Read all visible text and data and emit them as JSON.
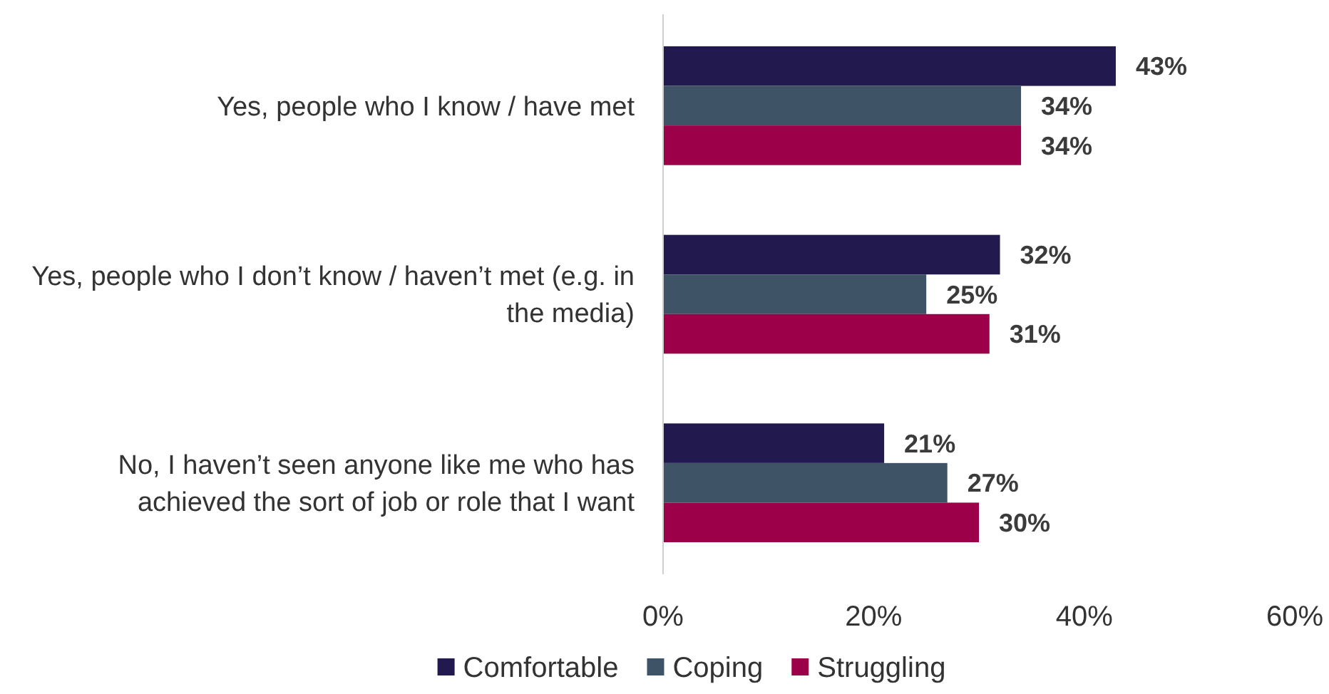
{
  "chart_data": {
    "type": "bar",
    "orientation": "horizontal",
    "categories": [
      "Yes, people who I know / have met",
      "Yes, people who I don’t know / haven’t met (e.g. in the media)",
      "No, I haven’t seen anyone like me who has achieved the sort of job or role that I want"
    ],
    "series": [
      {
        "name": "Comfortable",
        "color": "#221a4f",
        "values": [
          43,
          32,
          21
        ],
        "value_labels": [
          "43%",
          "32%",
          "21%"
        ]
      },
      {
        "name": "Coping",
        "color": "#3e5366",
        "values": [
          34,
          25,
          27
        ],
        "value_labels": [
          "34%",
          "25%",
          "27%"
        ]
      },
      {
        "name": "Struggling",
        "color": "#9b0048",
        "values": [
          34,
          31,
          30
        ],
        "value_labels": [
          "34%",
          "31%",
          "30%"
        ]
      }
    ],
    "xlim": [
      0,
      60
    ],
    "xticks": [
      {
        "value": 0,
        "label": "0%"
      },
      {
        "value": 20,
        "label": "20%"
      },
      {
        "value": 40,
        "label": "40%"
      },
      {
        "value": 60,
        "label": "60%"
      }
    ],
    "grid": false,
    "legend": "bottom"
  }
}
